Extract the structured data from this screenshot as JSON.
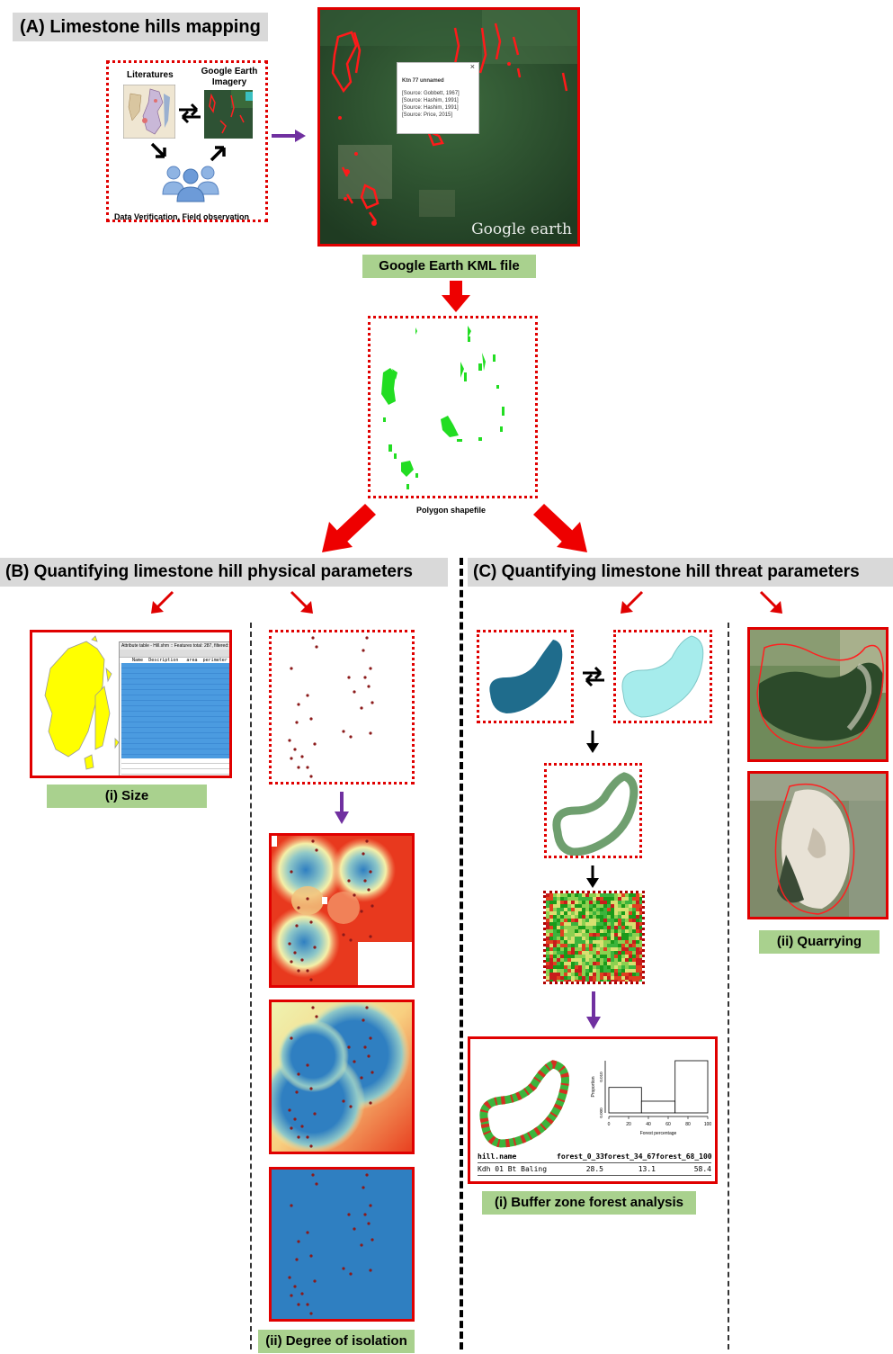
{
  "section_a": {
    "title": "(A) Limestone hills mapping",
    "literatures_label": "Literatures",
    "google_earth_label": "Google Earth Imagery",
    "verification_label": "Data Verification,  Field observation",
    "popup_title": "Ktn 77 unnamed",
    "popup_close": "×",
    "popup_sources": [
      "[Source: Gobbett, 1967]",
      "[Source: Hashim, 1991]",
      "[Source: Hashim, 1991]",
      "[Source: Price, 2015]"
    ],
    "watermark": "Google earth",
    "kml_label": "Google Earth KML file",
    "shapefile_label": "Polygon shapefile"
  },
  "section_b": {
    "title": "(B) Quantifying limestone hill physical parameters",
    "attr_table_title": "Attribute table - Hill.shm :: Features total: 287, filtered: 287",
    "attr_headers": [
      "Name",
      "Description",
      "area",
      "perimeter"
    ],
    "size_label": "(i) Size",
    "isolation_label": "(ii) Degree of isolation"
  },
  "section_c": {
    "title": "(C) Quantifying limestone hill threat parameters",
    "buffer_label": "(i) Buffer zone forest analysis",
    "quarrying_label": "(ii) Quarrying",
    "hist_ylabel": "Proportion",
    "hist_xlabel": "Forest percentage",
    "hist_xticks": [
      "0",
      "20",
      "40",
      "60",
      "80",
      "100"
    ],
    "hist_yticks": [
      "0.000",
      "0.010"
    ],
    "table_headers": [
      "hill.name",
      "forest_0_33",
      "forest_34_67",
      "forest_68_100"
    ],
    "table_row": [
      "Kdh 01 Bt Baling",
      "28.5",
      "13.1",
      "58.4"
    ]
  },
  "colors": {
    "red": "#e00000",
    "purple": "#7030a0",
    "label_green": "#a9d18e",
    "title_gray": "#d9d9d9",
    "polygon_green": "#22dd22",
    "teal": "#1f6c8c",
    "cyan": "#a6ecec",
    "buffer_green": "#6f9f6f"
  }
}
